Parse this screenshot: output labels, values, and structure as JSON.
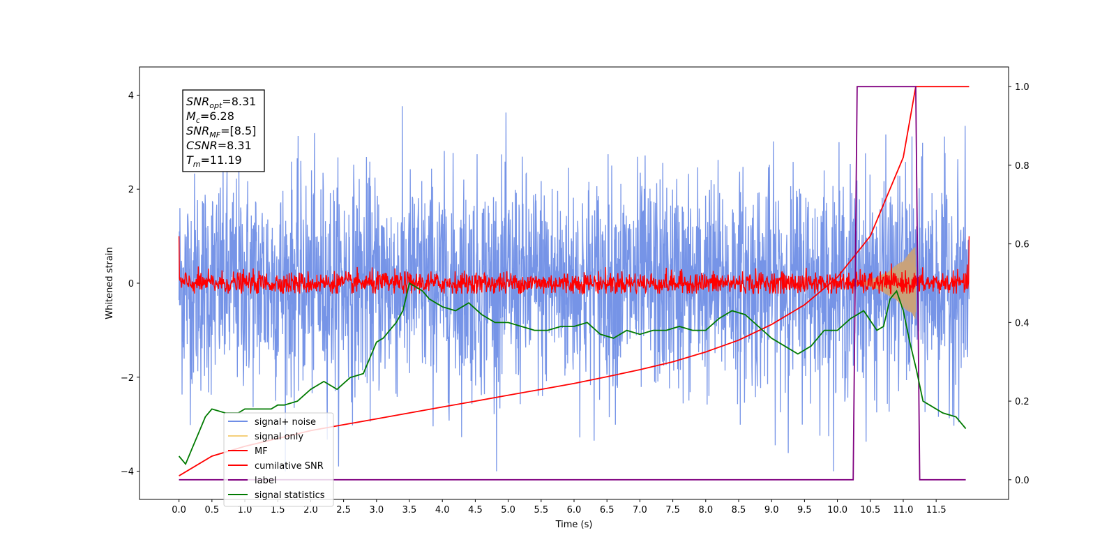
{
  "chart_data": {
    "type": "line",
    "xlabel": "Time (s)",
    "ylabel": "Whitened strain",
    "xlim": [
      -0.6,
      12.6
    ],
    "ylim": [
      -4.6,
      4.6
    ],
    "y2lim": [
      -0.05,
      1.05
    ],
    "x_ticks": [
      "0.0",
      "0.5",
      "1.0",
      "1.5",
      "2.0",
      "2.5",
      "3.0",
      "3.5",
      "4.0",
      "4.5",
      "5.0",
      "5.5",
      "6.0",
      "6.5",
      "7.0",
      "7.5",
      "8.0",
      "8.5",
      "9.0",
      "9.5",
      "10.0",
      "10.5",
      "11.0",
      "11.5"
    ],
    "y_ticks": [
      "4",
      "2",
      "0",
      "−2",
      "−4"
    ],
    "y2_ticks": [
      "1.0",
      "0.8",
      "0.6",
      "0.4",
      "0.2",
      "0.0"
    ],
    "annotation": {
      "lines": [
        {
          "base": "SNR",
          "sub": "opt",
          "value": "=8.31"
        },
        {
          "base": "M",
          "sub": "c",
          "value": "=6.28"
        },
        {
          "base": "SNR",
          "sub": "MF",
          "value": "=[8.5]"
        },
        {
          "base": "CSNR",
          "sub": "",
          "value": "=8.31"
        },
        {
          "base": "T",
          "sub": "m",
          "value": "=11.19"
        }
      ]
    },
    "legend": {
      "placement": "lower-left",
      "entries": [
        {
          "label": "signal+ noise",
          "color": "#6f8ee6"
        },
        {
          "label": "signal only",
          "color": "#f5cf7a"
        },
        {
          "label": "MF",
          "color": "#ff0000"
        },
        {
          "label": "cumilative SNR",
          "color": "#ff0000"
        },
        {
          "label": "label",
          "color": "#800080"
        },
        {
          "label": "signal statistics",
          "color": "#007a00"
        }
      ]
    },
    "series": [
      {
        "name": "signal+ noise",
        "axis": "left",
        "description_kind": "noise",
        "x_range": [
          0.0,
          12.0
        ],
        "mean": 0.0,
        "std": 1.0,
        "peak_range": [
          -4.0,
          4.1
        ],
        "color": "#6f8ee6"
      },
      {
        "name": "signal only",
        "axis": "left",
        "kind": "chirp",
        "x_range": [
          10.2,
          11.19
        ],
        "max_amplitude": 0.8,
        "color": "#f5cf7a"
      },
      {
        "name": "MF",
        "axis": "left",
        "kind": "noise",
        "x_range": [
          0.0,
          12.0
        ],
        "mean": 0.0,
        "std": 0.12,
        "edge_values": [
          1.0,
          1.0
        ],
        "color": "#ff0000"
      },
      {
        "name": "cumilative SNR",
        "axis": "right",
        "x": [
          0.0,
          0.5,
          1.0,
          1.5,
          2.0,
          2.5,
          3.0,
          3.5,
          4.0,
          4.5,
          5.0,
          5.5,
          6.0,
          6.5,
          7.0,
          7.5,
          8.0,
          8.5,
          9.0,
          9.5,
          10.0,
          10.5,
          11.0,
          11.19,
          12.0
        ],
        "values": [
          0.01,
          0.06,
          0.085,
          0.105,
          0.125,
          0.14,
          0.155,
          0.17,
          0.185,
          0.2,
          0.215,
          0.23,
          0.245,
          0.262,
          0.28,
          0.3,
          0.325,
          0.355,
          0.395,
          0.445,
          0.515,
          0.62,
          0.82,
          1.0,
          1.0
        ],
        "color": "#ff0000"
      },
      {
        "name": "label",
        "axis": "right",
        "x": [
          0.0,
          10.24,
          10.3,
          11.19,
          11.25,
          11.95
        ],
        "values": [
          0.0,
          0.0,
          1.0,
          1.0,
          0.0,
          0.0
        ],
        "color": "#800080"
      },
      {
        "name": "signal statistics",
        "axis": "right",
        "x": [
          0.0,
          0.1,
          0.2,
          0.3,
          0.4,
          0.5,
          0.7,
          0.9,
          1.0,
          1.2,
          1.4,
          1.5,
          1.6,
          1.8,
          2.0,
          2.2,
          2.4,
          2.6,
          2.8,
          3.0,
          3.1,
          3.2,
          3.3,
          3.4,
          3.5,
          3.6,
          3.7,
          3.8,
          4.0,
          4.2,
          4.4,
          4.6,
          4.8,
          5.0,
          5.2,
          5.4,
          5.6,
          5.8,
          6.0,
          6.2,
          6.4,
          6.6,
          6.8,
          7.0,
          7.2,
          7.4,
          7.6,
          7.8,
          8.0,
          8.2,
          8.4,
          8.6,
          8.8,
          9.0,
          9.2,
          9.4,
          9.6,
          9.8,
          10.0,
          10.2,
          10.4,
          10.6,
          10.7,
          10.8,
          10.9,
          11.0,
          11.1,
          11.2,
          11.3,
          11.4,
          11.6,
          11.8,
          11.95
        ],
        "values": [
          0.06,
          0.04,
          0.08,
          0.12,
          0.16,
          0.18,
          0.17,
          0.17,
          0.18,
          0.18,
          0.18,
          0.19,
          0.19,
          0.2,
          0.23,
          0.25,
          0.23,
          0.26,
          0.27,
          0.35,
          0.36,
          0.38,
          0.4,
          0.43,
          0.5,
          0.49,
          0.48,
          0.46,
          0.44,
          0.43,
          0.45,
          0.42,
          0.4,
          0.4,
          0.39,
          0.38,
          0.38,
          0.39,
          0.39,
          0.4,
          0.37,
          0.36,
          0.38,
          0.37,
          0.38,
          0.38,
          0.39,
          0.38,
          0.38,
          0.41,
          0.43,
          0.42,
          0.39,
          0.36,
          0.34,
          0.32,
          0.34,
          0.38,
          0.38,
          0.41,
          0.43,
          0.38,
          0.39,
          0.46,
          0.48,
          0.43,
          0.35,
          0.28,
          0.2,
          0.19,
          0.17,
          0.16,
          0.13
        ],
        "color": "#007a00"
      }
    ]
  }
}
